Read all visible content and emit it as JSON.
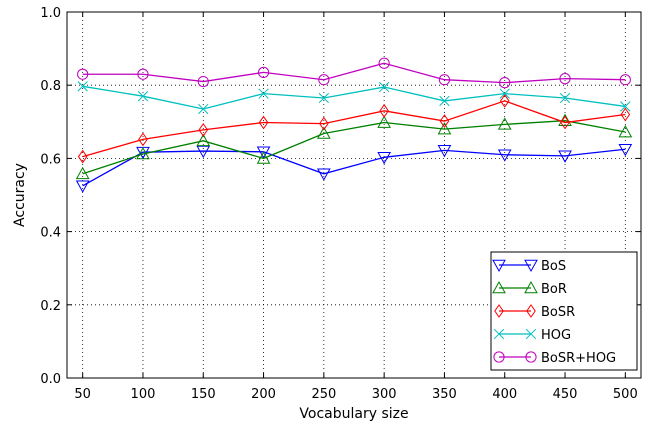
{
  "chart_data": {
    "type": "line",
    "title": "",
    "xlabel": "Vocabulary size",
    "ylabel": "Accuracy",
    "x": [
      50,
      100,
      150,
      200,
      250,
      300,
      350,
      400,
      450,
      500
    ],
    "xticks": [
      "50",
      "100",
      "150",
      "200",
      "250",
      "300",
      "350",
      "400",
      "450",
      "500"
    ],
    "yticks": [
      "0.0",
      "0.2",
      "0.4",
      "0.6",
      "0.8",
      "1.0"
    ],
    "xlim": [
      37,
      513
    ],
    "ylim": [
      0,
      1
    ],
    "grid": true,
    "legend_position": "lower-right",
    "series": [
      {
        "name": "BoS",
        "color": "#0000ff",
        "marker": "triangle-down",
        "values": [
          0.525,
          0.617,
          0.62,
          0.618,
          0.558,
          0.603,
          0.622,
          0.61,
          0.607,
          0.625
        ]
      },
      {
        "name": "BoR",
        "color": "#008000",
        "marker": "triangle-up",
        "values": [
          0.558,
          0.612,
          0.648,
          0.6,
          0.668,
          0.698,
          0.68,
          0.693,
          0.703,
          0.672
        ]
      },
      {
        "name": "BoSR",
        "color": "#ff0000",
        "marker": "diamond",
        "values": [
          0.605,
          0.652,
          0.678,
          0.698,
          0.695,
          0.73,
          0.702,
          0.757,
          0.698,
          0.72
        ]
      },
      {
        "name": "HOG",
        "color": "#00bfbf",
        "marker": "x",
        "values": [
          0.797,
          0.77,
          0.735,
          0.777,
          0.765,
          0.795,
          0.757,
          0.777,
          0.765,
          0.742
        ]
      },
      {
        "name": "BoSR+HOG",
        "color": "#bf00bf",
        "marker": "circle",
        "values": [
          0.83,
          0.83,
          0.81,
          0.835,
          0.815,
          0.86,
          0.815,
          0.807,
          0.818,
          0.815
        ]
      }
    ]
  }
}
